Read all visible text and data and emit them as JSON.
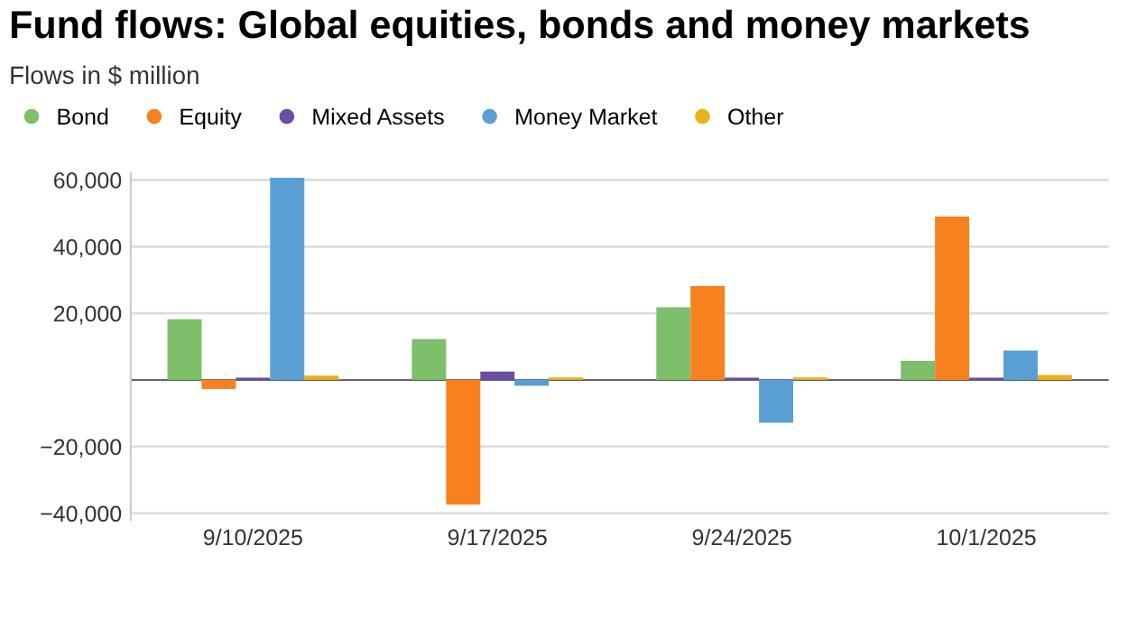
{
  "chart_data": {
    "type": "bar",
    "title": "Fund flows: Global equities, bonds and money markets",
    "subtitle": "Flows in $ million",
    "categories": [
      "9/10/2025",
      "9/17/2025",
      "9/24/2025",
      "10/1/2025"
    ],
    "series": [
      {
        "name": "Bond",
        "color": "#7dbf6a",
        "values": [
          18200,
          12300,
          21800,
          5700
        ]
      },
      {
        "name": "Equity",
        "color": "#f7801f",
        "values": [
          -2700,
          -37400,
          28200,
          49000
        ]
      },
      {
        "name": "Mixed Assets",
        "color": "#6b4fa0",
        "values": [
          700,
          2500,
          700,
          700
        ]
      },
      {
        "name": "Money Market",
        "color": "#5a9fd4",
        "values": [
          60700,
          -1700,
          -12800,
          8800
        ]
      },
      {
        "name": "Other",
        "color": "#e8b21a",
        "values": [
          1300,
          800,
          800,
          1500
        ]
      }
    ],
    "ylim": [
      -42000,
      62000
    ],
    "yticks": [
      {
        "value": -40000,
        "label": "−40,000"
      },
      {
        "value": -20000,
        "label": "−20,000"
      },
      {
        "value": 0,
        "label": null
      },
      {
        "value": 20000,
        "label": "20,000"
      },
      {
        "value": 40000,
        "label": "40,000"
      },
      {
        "value": 60000,
        "label": "60,000"
      }
    ],
    "grid": "y",
    "legend": "top left"
  }
}
